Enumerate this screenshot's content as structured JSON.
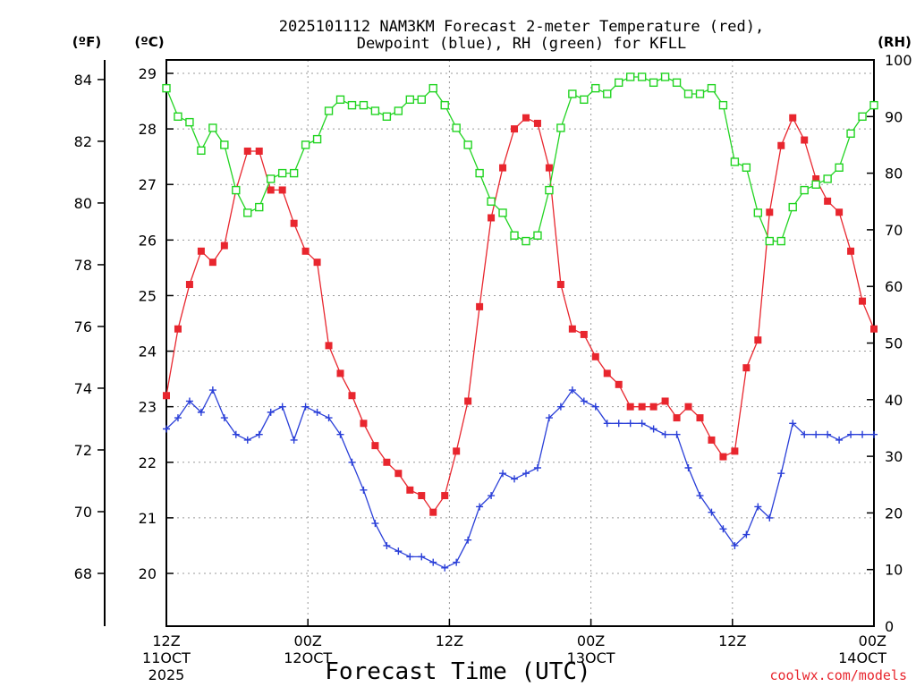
{
  "chart_data": {
    "type": "line",
    "title": [
      "2025101112 NAM3KM Forecast 2-meter Temperature (red),",
      "Dewpoint (blue), RH (green) for KFLL"
    ],
    "units": {
      "fahrenheit": "(ºF)",
      "celsius": "(ºC)",
      "rh": "(RH)"
    },
    "xlabel": "Forecast Time (UTC)",
    "credit": "coolwx.com/models",
    "x_range_hours": [
      0,
      60
    ],
    "x_ticks": [
      {
        "hour": 0,
        "lines": [
          "12Z",
          "11OCT",
          "2025"
        ]
      },
      {
        "hour": 12,
        "lines": [
          "00Z",
          "12OCT"
        ]
      },
      {
        "hour": 24,
        "lines": [
          "12Z",
          ""
        ]
      },
      {
        "hour": 36,
        "lines": [
          "00Z",
          "13OCT"
        ]
      },
      {
        "hour": 48,
        "lines": [
          "12Z",
          ""
        ]
      },
      {
        "hour": 60,
        "lines": [
          "00Z",
          "14OCT"
        ]
      }
    ],
    "celsius_ticks": [
      20,
      21,
      22,
      23,
      24,
      25,
      26,
      27,
      28,
      29
    ],
    "fahrenheit_ticks": [
      68,
      70,
      72,
      74,
      76,
      78,
      80,
      82,
      84
    ],
    "rh_ticks": [
      0,
      10,
      20,
      30,
      40,
      50,
      60,
      70,
      80,
      90,
      100
    ],
    "celsius_range": [
      19,
      29.2
    ],
    "rh_range": [
      0,
      100
    ],
    "series": [
      {
        "name": "2-meter Temperature",
        "unit": "C",
        "color": "#e8262e",
        "marker": "filled-square",
        "values": [
          23.2,
          24.4,
          25.2,
          25.8,
          25.6,
          25.9,
          26.9,
          27.6,
          27.6,
          26.9,
          26.9,
          26.3,
          25.8,
          25.6,
          24.1,
          23.6,
          23.2,
          22.7,
          22.3,
          22.0,
          21.8,
          21.5,
          21.4,
          21.1,
          21.4,
          22.2,
          23.1,
          24.8,
          26.4,
          27.3,
          28.0,
          28.2,
          28.1,
          27.3,
          25.2,
          24.4,
          24.3,
          23.9,
          23.6,
          23.4,
          23.0,
          23.0,
          23.0,
          23.1,
          22.8,
          23.0,
          22.8,
          22.4,
          22.1,
          22.2,
          23.7,
          24.2,
          26.5,
          27.7,
          28.2,
          27.8,
          27.1,
          26.7,
          26.5,
          25.8,
          24.9,
          24.4
        ]
      },
      {
        "name": "Dewpoint",
        "unit": "C",
        "color": "#2a3fd8",
        "marker": "plus",
        "values": [
          22.6,
          22.8,
          23.1,
          22.9,
          23.3,
          22.8,
          22.5,
          22.4,
          22.5,
          22.9,
          23.0,
          22.4,
          23.0,
          22.9,
          22.8,
          22.5,
          22.0,
          21.5,
          20.9,
          20.5,
          20.4,
          20.3,
          20.3,
          20.2,
          20.1,
          20.2,
          20.6,
          21.2,
          21.4,
          21.8,
          21.7,
          21.8,
          21.9,
          22.8,
          23.0,
          23.3,
          23.1,
          23.0,
          22.7,
          22.7,
          22.7,
          22.7,
          22.6,
          22.5,
          22.5,
          21.9,
          21.4,
          21.1,
          20.8,
          20.5,
          20.7,
          21.2,
          21.0,
          21.8,
          22.7,
          22.5,
          22.5,
          22.5,
          22.4,
          22.5,
          22.5,
          22.5
        ]
      },
      {
        "name": "Relative Humidity",
        "unit": "%",
        "color": "#22d422",
        "marker": "open-square",
        "values": [
          95,
          90,
          89,
          84,
          88,
          85,
          77,
          73,
          74,
          79,
          80,
          80,
          85,
          86,
          91,
          93,
          92,
          92,
          91,
          90,
          91,
          93,
          93,
          95,
          92,
          88,
          85,
          80,
          75,
          73,
          69,
          68,
          69,
          77,
          88,
          94,
          93,
          95,
          94,
          96,
          97,
          97,
          96,
          97,
          96,
          94,
          94,
          95,
          92,
          82,
          81,
          73,
          68,
          68,
          74,
          77,
          78,
          79,
          81,
          87,
          90,
          92
        ]
      }
    ]
  }
}
